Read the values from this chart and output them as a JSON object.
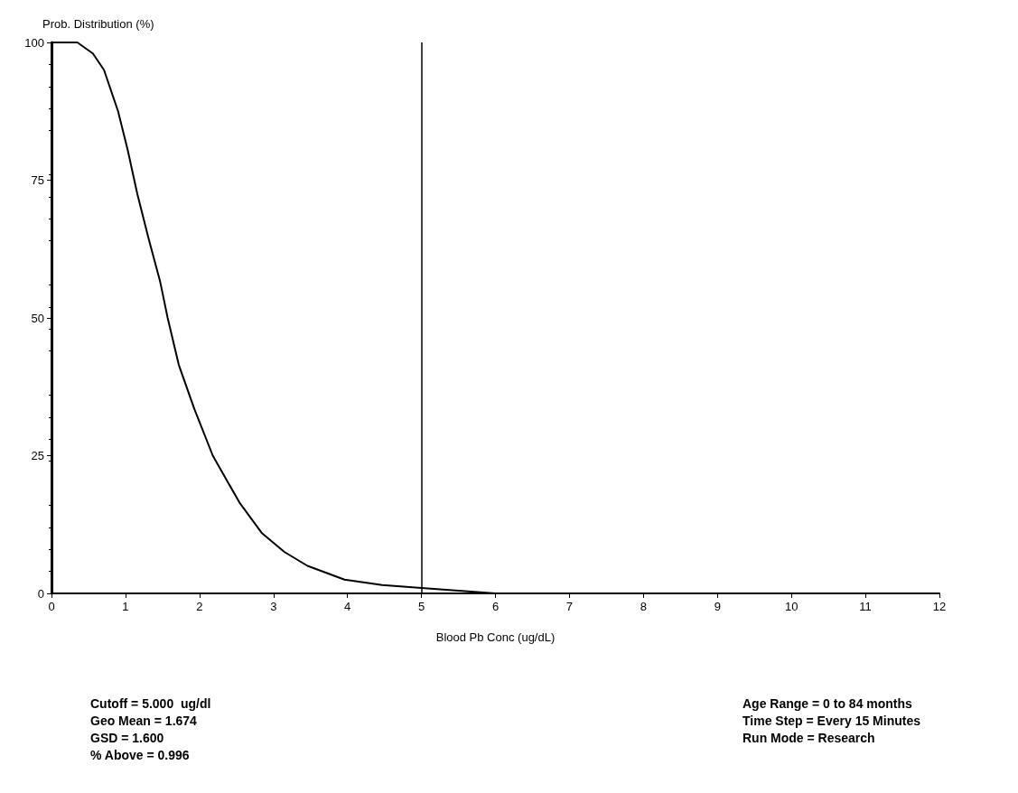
{
  "chart_data": {
    "type": "line",
    "xlabel": "Blood Pb Conc (ug/dL)",
    "ylabel": "Prob. Distribution (%)",
    "x": [
      0,
      0.35,
      0.56,
      0.71,
      0.9,
      1.03,
      1.16,
      1.32,
      1.47,
      1.57,
      1.72,
      1.93,
      2.18,
      2.54,
      2.84,
      3.15,
      3.46,
      3.96,
      4.47,
      5,
      5.5,
      6,
      12
    ],
    "series": [
      {
        "color": "#000000",
        "values": [
          100,
          100,
          98,
          95,
          87.5,
          80.5,
          72.5,
          64,
          56.5,
          50,
          41.5,
          33.5,
          25,
          16.5,
          11,
          7.5,
          5,
          2.5,
          1.5,
          1,
          0.5,
          0,
          0
        ]
      }
    ],
    "xlim": [
      0,
      12
    ],
    "xticks": [
      0,
      1,
      2,
      3,
      4,
      5,
      6,
      7,
      8,
      9,
      10,
      11,
      12
    ],
    "ylim": [
      0,
      100
    ],
    "yticks": [
      0,
      25,
      50,
      75,
      100
    ],
    "ref_lines": [
      {
        "axis": "x",
        "value": 5,
        "color": "#000000",
        "line_style": "solid"
      }
    ],
    "annotations": [
      "Cutoff = 5.000  ug/dl",
      "Geo Mean = 1.674",
      "GSD = 1.600",
      "% Above = 0.996",
      "Age Range = 0 to 84 months",
      "Time Step = Every 15 Minutes",
      "Run Mode = Research"
    ],
    "grid": false,
    "marker": "none",
    "line_style": "solid"
  }
}
